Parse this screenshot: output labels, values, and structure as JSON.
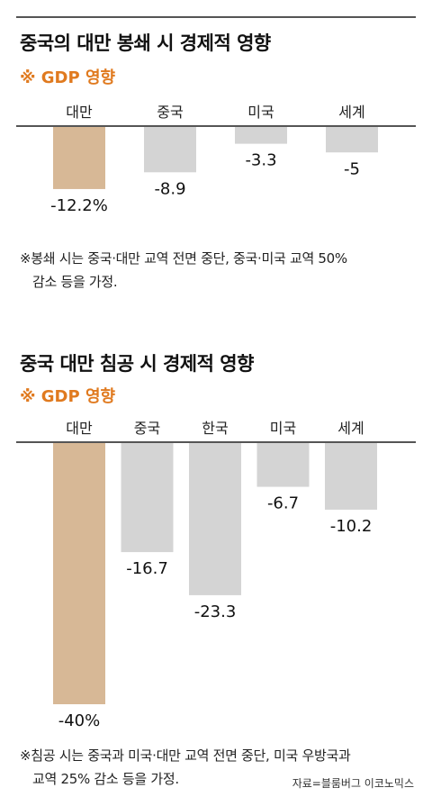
{
  "chart_data": [
    {
      "type": "bar",
      "title": "중국의 대만 봉쇄 시 경제적 영향",
      "subtitle": "※ GDP 영향",
      "categories": [
        "대만",
        "중국",
        "미국",
        "세계"
      ],
      "values": [
        -12.2,
        -8.9,
        -3.3,
        -5
      ],
      "value_labels": [
        "-12.2%",
        "-8.9",
        "-3.3",
        "-5"
      ],
      "highlight_color": "#d7b896",
      "bar_color": "#d4d4d4",
      "note_lines": [
        "※봉쇄 시는 중국·대만 교역 전면 중단, 중국·미국 교역 50%",
        "감소 등을 가정."
      ]
    },
    {
      "type": "bar",
      "title": "중국 대만 침공 시 경제적 영향",
      "subtitle": "※ GDP 영향",
      "categories": [
        "대만",
        "중국",
        "한국",
        "미국",
        "세계"
      ],
      "values": [
        -40,
        -16.7,
        -23.3,
        -6.7,
        -10.2
      ],
      "value_labels": [
        "-40%",
        "-16.7",
        "-23.3",
        "-6.7",
        "-10.2"
      ],
      "highlight_color": "#d7b896",
      "bar_color": "#d4d4d4",
      "note_lines": [
        "※침공 시는 중국과 미국·대만 교역 전면 중단, 미국 우방국과",
        "교역 25% 감소 등을 가정."
      ]
    }
  ],
  "source": "자료=블룸버그 이코노믹스"
}
